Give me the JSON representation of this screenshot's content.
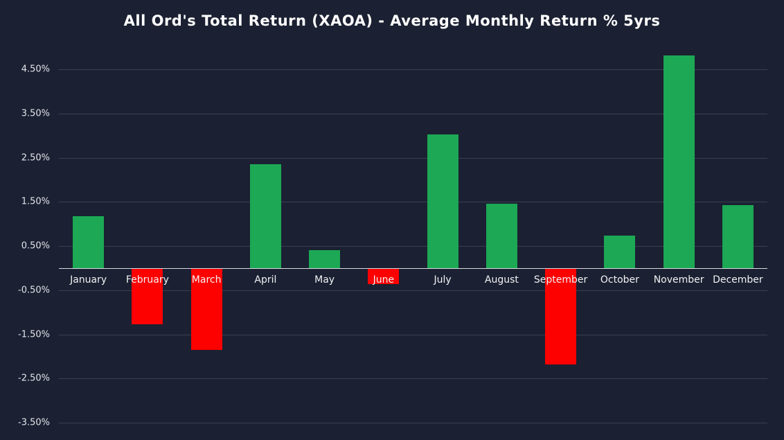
{
  "title": "All Ord's Total Return (XAOA) - Average Monthly Return % 5yrs",
  "colors": {
    "background": "#1b2032",
    "positive_bar": "#1ca854",
    "negative_bar": "#fd0000",
    "gridline": "#3a4152",
    "axis_line": "#d9dce3",
    "text": "#e3e5ea",
    "title_text": "#ffffff"
  },
  "chart_data": {
    "type": "bar",
    "title": "All Ord's Total Return (XAOA) - Average Monthly Return % 5yrs",
    "categories": [
      "January",
      "February",
      "March",
      "April",
      "May",
      "June",
      "July",
      "August",
      "September",
      "October",
      "November",
      "December"
    ],
    "values": [
      1.18,
      -1.27,
      -1.86,
      2.35,
      0.41,
      -0.36,
      3.02,
      1.46,
      -2.18,
      0.73,
      4.82,
      1.43
    ],
    "xlabel": "",
    "ylabel": "",
    "ylim": [
      -3.5,
      4.5
    ],
    "yticks": [
      4.5,
      3.5,
      2.5,
      1.5,
      0.5,
      -0.5,
      -1.5,
      -2.5,
      -3.5
    ],
    "ytick_labels": [
      "4.50%",
      "3.50%",
      "2.50%",
      "1.50%",
      "0.50%",
      "-0.50%",
      "-1.50%",
      "-2.50%",
      "-3.50%"
    ],
    "grid": true,
    "legend": false,
    "series_color_rule": "green if positive, red if negative"
  }
}
